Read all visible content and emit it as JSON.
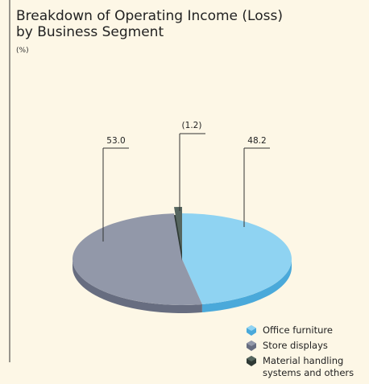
{
  "chart_data": {
    "type": "pie",
    "title": "Breakdown of Operating Income (Loss)",
    "title_line2": "by Business Segment",
    "unit_label": "(%)",
    "categories": [
      "Office furniture",
      "Store displays",
      "Material handling systems and others"
    ],
    "values": [
      48.2,
      53.0,
      -1.2
    ],
    "value_labels": [
      "48.2",
      "53.0",
      "(1.2)"
    ],
    "colors": [
      "#8fd3f2",
      "#9298a9",
      "#56665f"
    ],
    "side_colors": [
      "#4aa9da",
      "#676d80",
      "#2f3a35"
    ]
  }
}
